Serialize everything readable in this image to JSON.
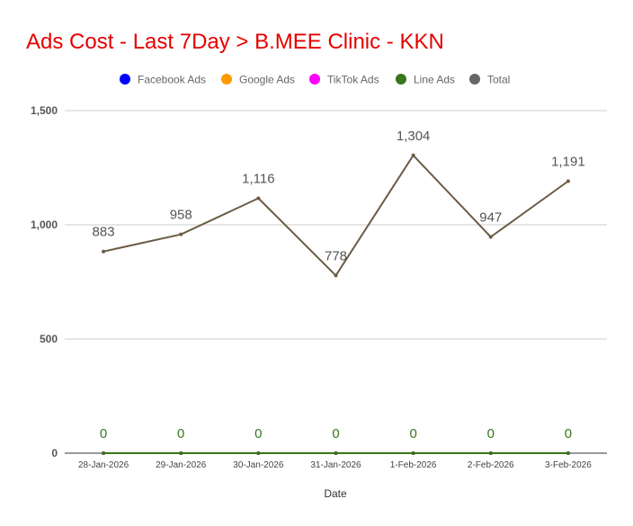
{
  "chart_data": {
    "type": "line",
    "title": "Ads Cost - Last 7Day > B.MEE Clinic - KKN",
    "title_color": "#e60000",
    "xlabel": "Date",
    "ylabel": "",
    "categories": [
      "28-Jan-2026",
      "29-Jan-2026",
      "30-Jan-2026",
      "31-Jan-2026",
      "1-Feb-2026",
      "2-Feb-2026",
      "3-Feb-2026"
    ],
    "ylim": [
      0,
      1500
    ],
    "yticks": [
      0,
      500,
      1000,
      1500
    ],
    "ytick_labels": [
      "0",
      "500",
      "1,000",
      "1,500"
    ],
    "grid": true,
    "legend_position": "top",
    "series": [
      {
        "name": "Facebook Ads",
        "color": "#0000ff",
        "values": [
          0,
          0,
          0,
          0,
          0,
          0,
          0
        ],
        "labels": [],
        "label_color": "#0000ff"
      },
      {
        "name": "Google Ads",
        "color": "#ff9900",
        "values": [
          0,
          0,
          0,
          0,
          0,
          0,
          0
        ],
        "labels": [],
        "label_color": "#ff9900"
      },
      {
        "name": "TikTok Ads",
        "color": "#ff00ff",
        "values": [
          0,
          0,
          0,
          0,
          0,
          0,
          0
        ],
        "labels": [],
        "label_color": "#ff00ff"
      },
      {
        "name": "Line Ads",
        "color": "#38761d",
        "values": [
          0,
          0,
          0,
          0,
          0,
          0,
          0
        ],
        "labels": [
          "0",
          "0",
          "0",
          "0",
          "0",
          "0",
          "0"
        ],
        "label_color": "#38761d"
      },
      {
        "name": "Total",
        "color": "#666666",
        "line_color": "#6b5b45",
        "values": [
          883,
          958,
          1116,
          778,
          1304,
          947,
          1191
        ],
        "labels": [
          "883",
          "958",
          "1,116",
          "778",
          "1,304",
          "947",
          "1,191"
        ],
        "label_color": "#555555"
      }
    ]
  }
}
